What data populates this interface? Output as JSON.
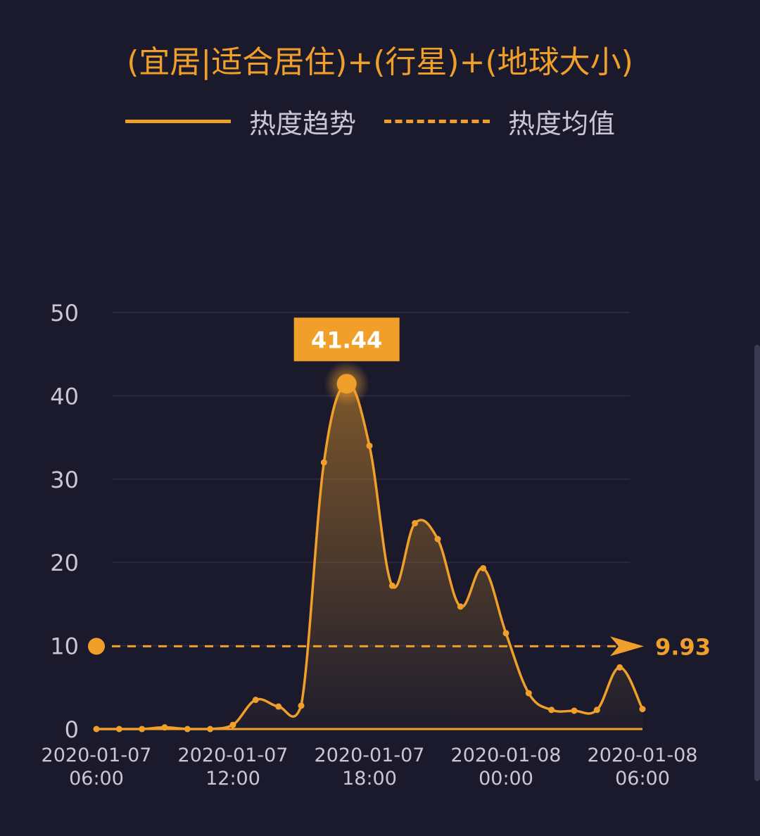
{
  "colors": {
    "background": "#1b1a2c",
    "accent": "#f0a02a",
    "text": "#c9c7d2",
    "grid": "#2a293d"
  },
  "chart_data": {
    "type": "line",
    "title": "(宜居|适合居住)+(行星)+(地球大小)",
    "legend": {
      "placement": "top",
      "items": [
        {
          "label": "热度趋势",
          "style": "solid"
        },
        {
          "label": "热度均值",
          "style": "dashed"
        }
      ]
    },
    "series": [
      {
        "name": "热度趋势",
        "values": [
          0,
          0,
          0,
          0.2,
          0,
          0,
          0.5,
          3.5,
          2.7,
          2.8,
          32,
          41.44,
          34,
          17.2,
          24.7,
          22.8,
          14.7,
          19.3,
          11.5,
          4.3,
          2.3,
          2.2,
          2.3,
          7.4,
          2.4
        ]
      }
    ],
    "x_ticks": [
      {
        "index": 0,
        "line1": "2020-01-07",
        "line2": "06:00"
      },
      {
        "index": 6,
        "line1": "2020-01-07",
        "line2": "12:00"
      },
      {
        "index": 12,
        "line1": "2020-01-07",
        "line2": "18:00"
      },
      {
        "index": 18,
        "line1": "2020-01-08",
        "line2": "00:00"
      },
      {
        "index": 24,
        "line1": "2020-01-08",
        "line2": "06:00"
      }
    ],
    "y_ticks": [
      "0",
      "10",
      "20",
      "30",
      "40",
      "50"
    ],
    "ylim": [
      0,
      50
    ],
    "grid": true,
    "average": {
      "value": 9.93,
      "label": "9.93"
    },
    "peak": {
      "index": 11,
      "value": 41.44,
      "label": "41.44"
    }
  }
}
